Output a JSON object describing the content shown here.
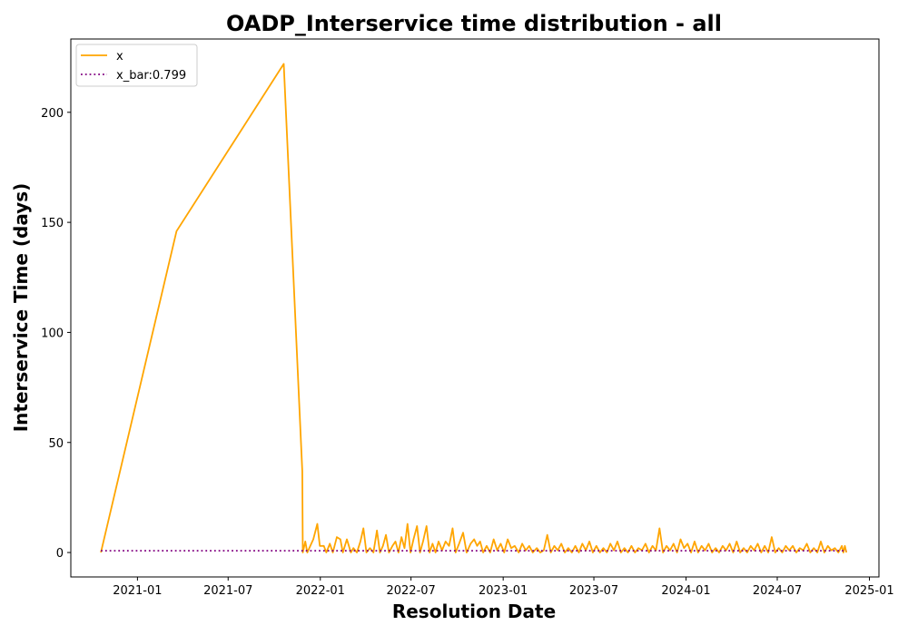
{
  "chart_data": {
    "type": "line",
    "title": "OADP_Interservice time distribution - all",
    "xlabel": "Resolution Date",
    "ylabel": "Interservice Time (days)",
    "x_type": "date",
    "xlim": [
      "2020-08-21",
      "2025-01-20"
    ],
    "ylim": [
      -11.1,
      233.3
    ],
    "x_ticks": [
      "2021-01-01",
      "2021-07-01",
      "2022-01-01",
      "2022-07-01",
      "2023-01-01",
      "2023-07-01",
      "2024-01-01",
      "2024-07-01",
      "2025-01-01"
    ],
    "x_tick_labels": [
      "2021-01",
      "2021-07",
      "2022-01",
      "2022-07",
      "2023-01",
      "2023-07",
      "2024-01",
      "2024-07",
      "2025-01"
    ],
    "y_ticks": [
      0,
      50,
      100,
      150,
      200
    ],
    "y_tick_labels": [
      "0",
      "50",
      "100",
      "150",
      "200"
    ],
    "grid": false,
    "legend": "upper-left",
    "series": [
      {
        "name": "x",
        "color": "#ffa500",
        "style": "solid",
        "points": [
          [
            "2020-10-20",
            0
          ],
          [
            "2021-03-20",
            146
          ],
          [
            "2021-10-20",
            222
          ],
          [
            "2021-11-26",
            37
          ],
          [
            "2021-11-27",
            0
          ],
          [
            "2021-12-02",
            5
          ],
          [
            "2021-12-06",
            0
          ],
          [
            "2021-12-12",
            3
          ],
          [
            "2021-12-18",
            6
          ],
          [
            "2021-12-26",
            13
          ],
          [
            "2021-12-31",
            3
          ],
          [
            "2022-01-08",
            3
          ],
          [
            "2022-01-13",
            0
          ],
          [
            "2022-01-20",
            4
          ],
          [
            "2022-01-26",
            0
          ],
          [
            "2022-02-03",
            7
          ],
          [
            "2022-02-10",
            6
          ],
          [
            "2022-02-15",
            0
          ],
          [
            "2022-02-23",
            6
          ],
          [
            "2022-03-03",
            0
          ],
          [
            "2022-03-08",
            2
          ],
          [
            "2022-03-15",
            0
          ],
          [
            "2022-03-22",
            5
          ],
          [
            "2022-03-28",
            11
          ],
          [
            "2022-04-03",
            0
          ],
          [
            "2022-04-10",
            2
          ],
          [
            "2022-04-17",
            0
          ],
          [
            "2022-04-24",
            10
          ],
          [
            "2022-04-30",
            0
          ],
          [
            "2022-05-06",
            3
          ],
          [
            "2022-05-12",
            8
          ],
          [
            "2022-05-18",
            0
          ],
          [
            "2022-05-25",
            3
          ],
          [
            "2022-05-31",
            5
          ],
          [
            "2022-06-06",
            0
          ],
          [
            "2022-06-12",
            7
          ],
          [
            "2022-06-18",
            2
          ],
          [
            "2022-06-24",
            13
          ],
          [
            "2022-06-30",
            0
          ],
          [
            "2022-07-06",
            6
          ],
          [
            "2022-07-13",
            12
          ],
          [
            "2022-07-19",
            0
          ],
          [
            "2022-07-25",
            5
          ],
          [
            "2022-08-01",
            12
          ],
          [
            "2022-08-07",
            0
          ],
          [
            "2022-08-13",
            4
          ],
          [
            "2022-08-19",
            0
          ],
          [
            "2022-08-25",
            5
          ],
          [
            "2022-09-01",
            1
          ],
          [
            "2022-09-08",
            5
          ],
          [
            "2022-09-15",
            3
          ],
          [
            "2022-09-22",
            11
          ],
          [
            "2022-09-28",
            0
          ],
          [
            "2022-10-05",
            4
          ],
          [
            "2022-10-13",
            9
          ],
          [
            "2022-10-20",
            0
          ],
          [
            "2022-10-28",
            4
          ],
          [
            "2022-11-04",
            6
          ],
          [
            "2022-11-10",
            3
          ],
          [
            "2022-11-16",
            5
          ],
          [
            "2022-11-22",
            0
          ],
          [
            "2022-11-29",
            3
          ],
          [
            "2022-12-06",
            0
          ],
          [
            "2022-12-13",
            6
          ],
          [
            "2022-12-20",
            1
          ],
          [
            "2022-12-27",
            4
          ],
          [
            "2023-01-03",
            0
          ],
          [
            "2023-01-10",
            6
          ],
          [
            "2023-01-17",
            2
          ],
          [
            "2023-01-24",
            3
          ],
          [
            "2023-02-01",
            0
          ],
          [
            "2023-02-08",
            4
          ],
          [
            "2023-02-15",
            1
          ],
          [
            "2023-02-22",
            3
          ],
          [
            "2023-03-01",
            0
          ],
          [
            "2023-03-09",
            2
          ],
          [
            "2023-03-16",
            0
          ],
          [
            "2023-03-23",
            1
          ],
          [
            "2023-03-30",
            8
          ],
          [
            "2023-04-06",
            0
          ],
          [
            "2023-04-13",
            3
          ],
          [
            "2023-04-20",
            1
          ],
          [
            "2023-04-27",
            4
          ],
          [
            "2023-05-04",
            0
          ],
          [
            "2023-05-11",
            2
          ],
          [
            "2023-05-18",
            0
          ],
          [
            "2023-05-25",
            3
          ],
          [
            "2023-06-01",
            0
          ],
          [
            "2023-06-08",
            4
          ],
          [
            "2023-06-15",
            1
          ],
          [
            "2023-06-22",
            5
          ],
          [
            "2023-06-29",
            0
          ],
          [
            "2023-07-06",
            3
          ],
          [
            "2023-07-13",
            0
          ],
          [
            "2023-07-20",
            2
          ],
          [
            "2023-07-27",
            0
          ],
          [
            "2023-08-03",
            4
          ],
          [
            "2023-08-10",
            1
          ],
          [
            "2023-08-17",
            5
          ],
          [
            "2023-08-24",
            0
          ],
          [
            "2023-08-31",
            2
          ],
          [
            "2023-09-07",
            0
          ],
          [
            "2023-09-14",
            3
          ],
          [
            "2023-09-21",
            0
          ],
          [
            "2023-09-28",
            2
          ],
          [
            "2023-10-05",
            1
          ],
          [
            "2023-10-12",
            4
          ],
          [
            "2023-10-19",
            0
          ],
          [
            "2023-10-26",
            3
          ],
          [
            "2023-11-02",
            1
          ],
          [
            "2023-11-09",
            11
          ],
          [
            "2023-11-16",
            0
          ],
          [
            "2023-11-23",
            3
          ],
          [
            "2023-11-30",
            1
          ],
          [
            "2023-12-07",
            4
          ],
          [
            "2023-12-14",
            0
          ],
          [
            "2023-12-21",
            6
          ],
          [
            "2023-12-28",
            2
          ],
          [
            "2024-01-04",
            4
          ],
          [
            "2024-01-11",
            0
          ],
          [
            "2024-01-18",
            5
          ],
          [
            "2024-01-25",
            0
          ],
          [
            "2024-02-01",
            3
          ],
          [
            "2024-02-08",
            1
          ],
          [
            "2024-02-15",
            4
          ],
          [
            "2024-02-22",
            0
          ],
          [
            "2024-02-29",
            2
          ],
          [
            "2024-03-07",
            0
          ],
          [
            "2024-03-14",
            3
          ],
          [
            "2024-03-21",
            1
          ],
          [
            "2024-03-28",
            4
          ],
          [
            "2024-04-04",
            0
          ],
          [
            "2024-04-11",
            5
          ],
          [
            "2024-04-18",
            0
          ],
          [
            "2024-04-25",
            2
          ],
          [
            "2024-05-02",
            0
          ],
          [
            "2024-05-09",
            3
          ],
          [
            "2024-05-16",
            1
          ],
          [
            "2024-05-23",
            4
          ],
          [
            "2024-05-30",
            0
          ],
          [
            "2024-06-06",
            3
          ],
          [
            "2024-06-13",
            0
          ],
          [
            "2024-06-20",
            7
          ],
          [
            "2024-06-27",
            0
          ],
          [
            "2024-07-04",
            2
          ],
          [
            "2024-07-11",
            0
          ],
          [
            "2024-07-18",
            3
          ],
          [
            "2024-07-25",
            1
          ],
          [
            "2024-08-01",
            3
          ],
          [
            "2024-08-08",
            0
          ],
          [
            "2024-08-15",
            2
          ],
          [
            "2024-08-22",
            1
          ],
          [
            "2024-08-29",
            4
          ],
          [
            "2024-09-05",
            0
          ],
          [
            "2024-09-12",
            2
          ],
          [
            "2024-09-19",
            0
          ],
          [
            "2024-09-26",
            5
          ],
          [
            "2024-10-03",
            0
          ],
          [
            "2024-10-10",
            3
          ],
          [
            "2024-10-17",
            1
          ],
          [
            "2024-10-24",
            2
          ],
          [
            "2024-10-31",
            0
          ],
          [
            "2024-11-07",
            3
          ],
          [
            "2024-11-10",
            0
          ],
          [
            "2024-11-13",
            3
          ],
          [
            "2024-11-16",
            0
          ]
        ]
      },
      {
        "name": "x_bar:0.799",
        "color": "#800080",
        "style": "dotted",
        "points": [
          [
            "2020-10-20",
            0.799
          ],
          [
            "2024-11-16",
            0.799
          ]
        ]
      }
    ]
  }
}
